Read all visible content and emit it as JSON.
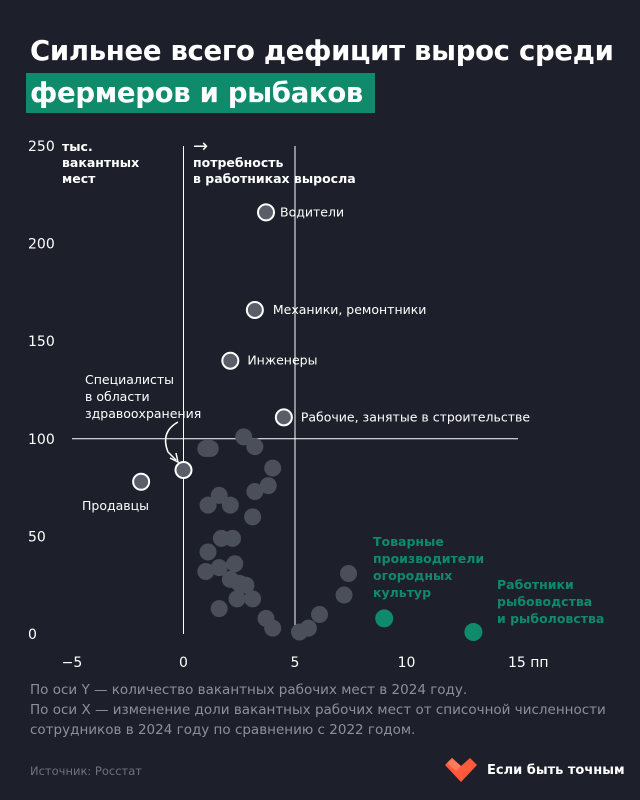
{
  "title": {
    "line1": "Сильнее всего дефицит вырос среди",
    "line2": "фермеров и рыбаков"
  },
  "colors": {
    "background": "#1d202a",
    "highlight": "#0f8a6a",
    "point_default": "#4b4f59",
    "point_labeled": "#5a5e68",
    "point_outline": "#ffffff",
    "text_muted": "#8c909a"
  },
  "chart_data": {
    "type": "scatter",
    "xlim": [
      -5,
      15
    ],
    "ylim": [
      0,
      250
    ],
    "x_ticks": [
      -5,
      0,
      5,
      10,
      15
    ],
    "x_tick_labels": [
      "−5",
      "0",
      "5",
      "10",
      "15 пп"
    ],
    "y_ticks": [
      0,
      50,
      100,
      150,
      200,
      250
    ],
    "y_tick_labels": [
      "0",
      "50",
      "100",
      "150",
      "200",
      "250"
    ],
    "ylabel": "тыс. вакантных мест",
    "annotation_arrow": "→",
    "annotation": "потребность в работниках выросла",
    "grid": "vertical lines at x = 0 and x = 5, horizontal line at y = 100",
    "labeled_points": [
      {
        "label": "Водители",
        "x": 3.7,
        "y": 216,
        "group": "outlined"
      },
      {
        "label": "Механики, ремонтники",
        "x": 3.2,
        "y": 166,
        "group": "outlined"
      },
      {
        "label": "Инженеры",
        "x": 2.1,
        "y": 140,
        "group": "outlined"
      },
      {
        "label": "Рабочие, занятые в строительстве",
        "x": 4.5,
        "y": 111,
        "group": "outlined"
      },
      {
        "label": "Специалисты в области здравоохранения",
        "x": 0.0,
        "y": 84,
        "group": "outlined"
      },
      {
        "label": "Продавцы",
        "x": -1.9,
        "y": 78,
        "group": "outlined"
      },
      {
        "label": "Товарные производители огородных культур",
        "x": 9.0,
        "y": 8,
        "group": "highlight"
      },
      {
        "label": "Работники рыбоводства и рыболовства",
        "x": 13.0,
        "y": 1,
        "group": "highlight"
      }
    ],
    "other_points": [
      {
        "x": 1.0,
        "y": 95
      },
      {
        "x": 1.2,
        "y": 95
      },
      {
        "x": 2.7,
        "y": 101
      },
      {
        "x": 3.2,
        "y": 96
      },
      {
        "x": 4.0,
        "y": 85
      },
      {
        "x": 3.8,
        "y": 76
      },
      {
        "x": 3.2,
        "y": 73
      },
      {
        "x": 1.6,
        "y": 71
      },
      {
        "x": 1.1,
        "y": 66
      },
      {
        "x": 2.1,
        "y": 66
      },
      {
        "x": 3.1,
        "y": 60
      },
      {
        "x": 1.7,
        "y": 49
      },
      {
        "x": 2.2,
        "y": 49
      },
      {
        "x": 1.1,
        "y": 42
      },
      {
        "x": 2.3,
        "y": 36
      },
      {
        "x": 1.0,
        "y": 32
      },
      {
        "x": 2.1,
        "y": 28
      },
      {
        "x": 2.5,
        "y": 26
      },
      {
        "x": 2.8,
        "y": 25
      },
      {
        "x": 1.6,
        "y": 34
      },
      {
        "x": 2.4,
        "y": 18
      },
      {
        "x": 3.1,
        "y": 18
      },
      {
        "x": 1.6,
        "y": 13
      },
      {
        "x": 3.7,
        "y": 8
      },
      {
        "x": 4.0,
        "y": 3
      },
      {
        "x": 5.2,
        "y": 1
      },
      {
        "x": 5.6,
        "y": 3
      },
      {
        "x": 6.1,
        "y": 10
      },
      {
        "x": 7.2,
        "y": 20
      },
      {
        "x": 7.4,
        "y": 31
      }
    ]
  },
  "notes": [
    "По оси Y — количество вакантных рабочих мест в 2024 году.",
    "По оси X — изменение доли вакантных рабочих мест от списочной численности сотрудников в 2024 году по сравнению с 2022 годом."
  ],
  "source": "Источник: Росстат",
  "brand": {
    "name": "Если быть точным",
    "logo": "heart-logo"
  }
}
